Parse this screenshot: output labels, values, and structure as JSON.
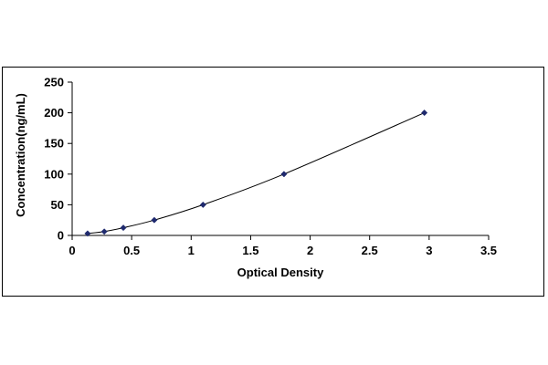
{
  "chart_data": {
    "type": "scatter",
    "title": "",
    "xlabel": "Optical Density",
    "ylabel": "Concentration(ng/mL)",
    "xlim": [
      0,
      3.5
    ],
    "ylim": [
      0,
      250
    ],
    "x_ticks": [
      "0",
      "0.5",
      "1",
      "1.5",
      "2",
      "2.5",
      "3",
      "3.5"
    ],
    "y_ticks": [
      "0",
      "50",
      "100",
      "150",
      "200",
      "250"
    ],
    "grid": false,
    "legend": "none",
    "series": [
      {
        "marker": "diamond",
        "color": "#1f2a6e",
        "fit_line": "smooth curve",
        "line_color": "#000000",
        "points": [
          {
            "x": 0.13,
            "y": 3.1
          },
          {
            "x": 0.27,
            "y": 6.3
          },
          {
            "x": 0.43,
            "y": 12.5
          },
          {
            "x": 0.69,
            "y": 25
          },
          {
            "x": 1.1,
            "y": 50
          },
          {
            "x": 1.78,
            "y": 100
          },
          {
            "x": 2.96,
            "y": 200
          }
        ]
      }
    ]
  }
}
